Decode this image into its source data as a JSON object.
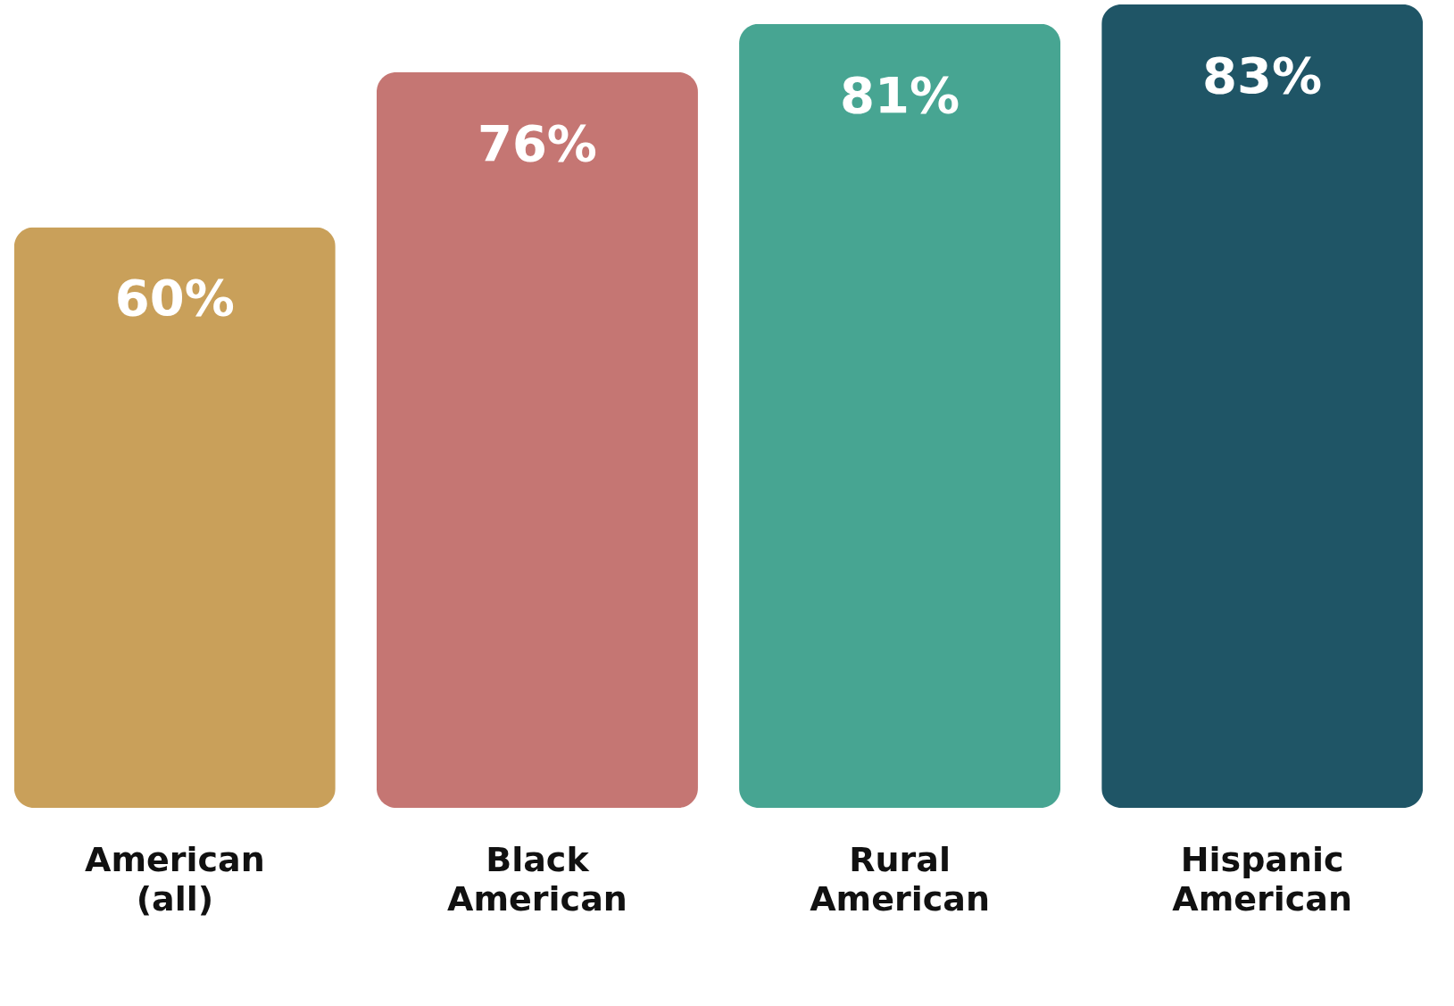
{
  "chart_data": {
    "type": "bar",
    "categories": [
      "American (all)",
      "Black American",
      "Rural American",
      "Hispanic American"
    ],
    "values": [
      60,
      76,
      81,
      83
    ],
    "colors": [
      "#c9a05a",
      "#c57673",
      "#47a592",
      "#1f5566"
    ],
    "value_labels": [
      "60%",
      "76%",
      "81%",
      "83%"
    ],
    "grid": false,
    "legend": false
  }
}
